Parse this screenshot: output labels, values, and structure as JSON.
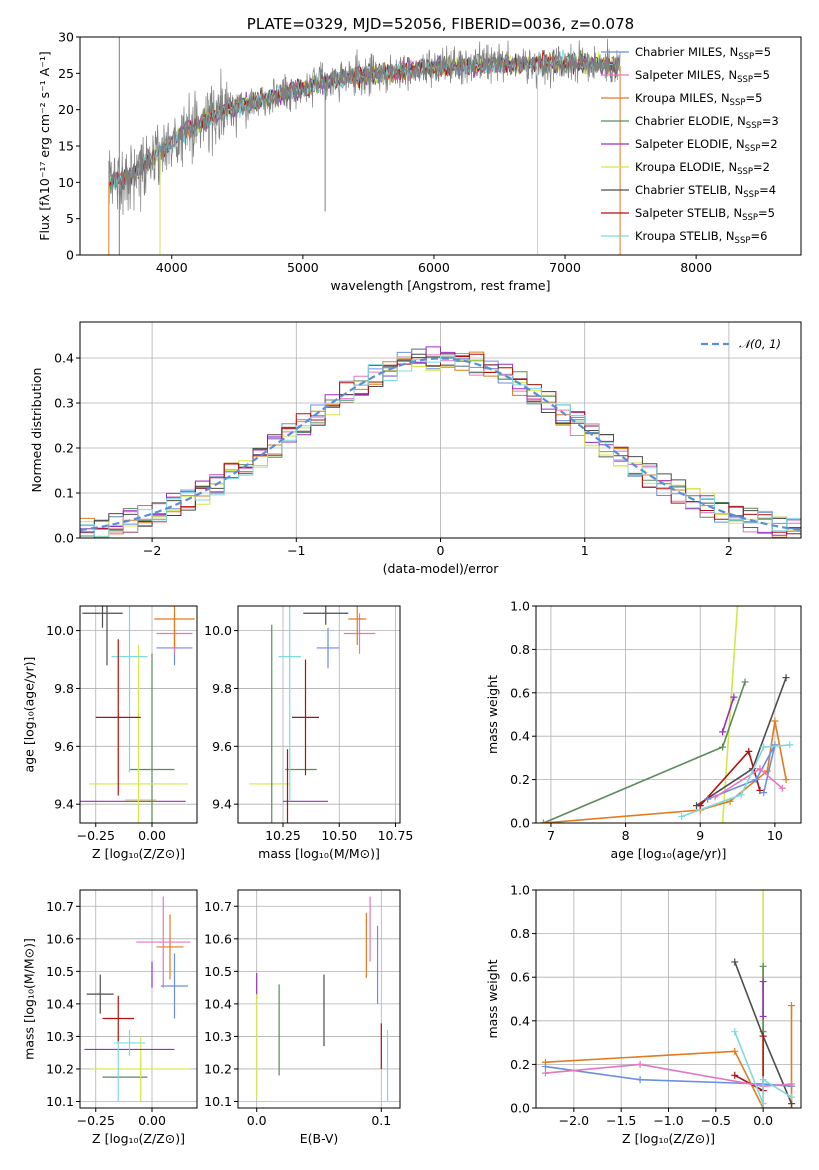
{
  "chart_data": [
    {
      "id": "spectrum",
      "type": "line",
      "title": "PLATE=0329, MJD=52056, FIBERID=0036, z=0.078",
      "xlabel": "wavelength [Angstrom, rest frame]",
      "ylabel": "Flux [fλ10⁻¹⁷ erg cm⁻² s⁻¹ A⁻¹]",
      "xlim": [
        3300,
        8800
      ],
      "ylim": [
        0,
        30
      ],
      "xticks": [
        4000,
        5000,
        6000,
        7000,
        8000
      ],
      "yticks": [
        0,
        5,
        10,
        15,
        20,
        25,
        30
      ],
      "grid": false,
      "legend_position": "top-right",
      "data_color": "#7f7f7f",
      "data_range": [
        3520,
        7420
      ],
      "data_continuum": [
        [
          3520,
          10
        ],
        [
          3700,
          11
        ],
        [
          3900,
          14
        ],
        [
          4100,
          17
        ],
        [
          4300,
          19
        ],
        [
          4500,
          20.5
        ],
        [
          4800,
          22
        ],
        [
          5100,
          23.5
        ],
        [
          5400,
          24.5
        ],
        [
          5800,
          25.5
        ],
        [
          6200,
          26
        ],
        [
          6600,
          26.3
        ],
        [
          7000,
          26.5
        ],
        [
          7420,
          26
        ]
      ],
      "series": [
        {
          "name": "Chabrier MILES, N",
          "sub": "SSP",
          "suffix": "=5",
          "color": "#6b8fe0"
        },
        {
          "name": "Salpeter MILES, N",
          "sub": "SSP",
          "suffix": "=5",
          "color": "#e377c2"
        },
        {
          "name": "Kroupa MILES, N",
          "sub": "SSP",
          "suffix": "=5",
          "color": "#e07b1f"
        },
        {
          "name": "Chabrier ELODIE, N",
          "sub": "SSP",
          "suffix": "=3",
          "color": "#5a8a5a"
        },
        {
          "name": "Salpeter ELODIE, N",
          "sub": "SSP",
          "suffix": "=2",
          "color": "#9b2fc0"
        },
        {
          "name": "Kroupa ELODIE, N",
          "sub": "SSP",
          "suffix": "=2",
          "color": "#d4e84a"
        },
        {
          "name": "Chabrier STELIB, N",
          "sub": "SSP",
          "suffix": "=4",
          "color": "#4d4d4d"
        },
        {
          "name": "Salpeter STELIB, N",
          "sub": "SSP",
          "suffix": "=5",
          "color": "#b01010"
        },
        {
          "name": "Kroupa STELIB, N",
          "sub": "SSP",
          "suffix": "=6",
          "color": "#7fd9e0"
        }
      ]
    },
    {
      "id": "histogram",
      "type": "histogram",
      "xlabel": "(data-model)/error",
      "ylabel": "Normed distribution",
      "xlim": [
        -2.5,
        2.5
      ],
      "ylim": [
        0,
        0.48
      ],
      "xticks": [
        -2,
        -1,
        0,
        1,
        2
      ],
      "yticks": [
        0.0,
        0.1,
        0.2,
        0.3,
        0.4
      ],
      "grid": true,
      "legend_position": "top-right",
      "legend_label": "𝒩(0, 1)",
      "gaussian_color": "#5b8ed6",
      "bin_width": 0.1
    },
    {
      "id": "age-vs-Z",
      "type": "errorbar",
      "xlabel": "Z [log₁₀(Z/Z⊙)]",
      "ylabel": "age  [log₁₀(age/yr)]",
      "xlim": [
        -0.32,
        0.2
      ],
      "ylim": [
        9.335,
        10.085
      ],
      "xticks": [
        -0.25,
        0.0
      ],
      "yticks": [
        9.4,
        9.6,
        9.8,
        10.0
      ],
      "grid": true,
      "points": [
        {
          "x": -0.05,
          "y": 9.415,
          "xerr": 0.07,
          "yerr": 0,
          "color": "#d4e84a"
        },
        {
          "x": -0.1,
          "y": 9.41,
          "xerr": 0.25,
          "yerr": 0,
          "color": "#9b2fc0"
        },
        {
          "x": 0.0,
          "y": 9.52,
          "xerr": 0.1,
          "yerr": 0.4,
          "color": "#5a8a5a"
        },
        {
          "x": -0.06,
          "y": 9.47,
          "xerr": 0.22,
          "yerr": 0.48,
          "color": "#d4e84a"
        },
        {
          "x": -0.1,
          "y": 9.91,
          "xerr": 0.08,
          "yerr": 0.4,
          "color": "#7fd9e0"
        },
        {
          "x": -0.15,
          "y": 9.7,
          "xerr": 0.1,
          "yerr": 0.27,
          "color": "#b01010"
        },
        {
          "x": 0.1,
          "y": 9.94,
          "xerr": 0.08,
          "yerr": 0.06,
          "color": "#6b8fe0"
        },
        {
          "x": 0.1,
          "y": 9.99,
          "xerr": 0.08,
          "yerr": 0.07,
          "color": "#e377c2"
        },
        {
          "x": 0.1,
          "y": 10.04,
          "xerr": 0.09,
          "yerr": 0.1,
          "color": "#e07b1f"
        },
        {
          "x": -0.22,
          "y": 10.06,
          "xerr": 0.09,
          "yerr": 0.05,
          "color": "#4d4d4d"
        },
        {
          "x": -0.2,
          "y": 9.99,
          "xerr": 0,
          "yerr": 0.11,
          "color": "#4d4d4d"
        }
      ]
    },
    {
      "id": "age-vs-mass",
      "type": "errorbar",
      "xlabel": "mass [log₁₀(M/M⊙)]",
      "ylabel": "",
      "xlim": [
        10.05,
        10.77
      ],
      "ylim": [
        9.335,
        10.085
      ],
      "xticks": [
        10.25,
        10.5,
        10.75
      ],
      "yticks": [
        9.4,
        9.6,
        9.8,
        10.0
      ],
      "grid": true,
      "points": [
        {
          "x": 10.19,
          "y": 9.47,
          "xerr": 0.09,
          "yerr": 0,
          "color": "#d4e84a"
        },
        {
          "x": 10.35,
          "y": 9.41,
          "xerr": 0.1,
          "yerr": 0,
          "color": "#9b2fc0"
        },
        {
          "x": 10.2,
          "y": 9.52,
          "xerr": 0,
          "yerr": 0.5,
          "color": "#5a8a5a"
        },
        {
          "x": 10.33,
          "y": 9.52,
          "xerr": 0.07,
          "yerr": 0,
          "color": "#5a8a5a"
        },
        {
          "x": 10.28,
          "y": 9.91,
          "xerr": 0.05,
          "yerr": 0.5,
          "color": "#7fd9e0"
        },
        {
          "x": 10.35,
          "y": 9.7,
          "xerr": 0.06,
          "yerr": 0.2,
          "color": "#b01010"
        },
        {
          "x": 10.45,
          "y": 9.94,
          "xerr": 0.05,
          "yerr": 0.07,
          "color": "#6b8fe0"
        },
        {
          "x": 10.59,
          "y": 9.99,
          "xerr": 0.07,
          "yerr": 0.07,
          "color": "#e377c2"
        },
        {
          "x": 10.58,
          "y": 10.04,
          "xerr": 0.04,
          "yerr": 0.09,
          "color": "#e07b1f"
        },
        {
          "x": 10.44,
          "y": 10.06,
          "xerr": 0.1,
          "yerr": 0.04,
          "color": "#4d4d4d"
        },
        {
          "x": 10.27,
          "y": 9.45,
          "xerr": 0,
          "yerr": 0.14,
          "color": "#b01010"
        }
      ]
    },
    {
      "id": "weight-vs-age",
      "type": "line",
      "xlabel": "age  [log₁₀(age/yr)]",
      "ylabel": "mass weight",
      "xlim": [
        6.8,
        10.35
      ],
      "ylim": [
        0,
        1
      ],
      "xticks": [
        7,
        8,
        9,
        10
      ],
      "yticks": [
        0.0,
        0.2,
        0.4,
        0.6,
        0.8,
        1.0
      ],
      "grid": true,
      "series": [
        {
          "color": "#d4e84a",
          "points": [
            [
              9.3,
              0.0
            ],
            [
              9.5,
              1.0
            ]
          ]
        },
        {
          "color": "#5a8a5a",
          "points": [
            [
              6.9,
              0.0
            ],
            [
              9.3,
              0.35
            ],
            [
              9.6,
              0.65
            ]
          ]
        },
        {
          "color": "#9b2fc0",
          "points": [
            [
              9.3,
              0.42
            ],
            [
              9.45,
              0.58
            ]
          ]
        },
        {
          "color": "#e07b1f",
          "points": [
            [
              6.9,
              0.0
            ],
            [
              9.0,
              0.06
            ],
            [
              9.4,
              0.1
            ],
            [
              9.9,
              0.24
            ],
            [
              10.0,
              0.47
            ],
            [
              10.15,
              0.2
            ]
          ]
        },
        {
          "color": "#4d4d4d",
          "points": [
            [
              8.95,
              0.08
            ],
            [
              9.7,
              0.25
            ],
            [
              10.15,
              0.67
            ]
          ]
        },
        {
          "color": "#b01010",
          "points": [
            [
              9.0,
              0.08
            ],
            [
              9.65,
              0.33
            ],
            [
              9.8,
              0.15
            ]
          ]
        },
        {
          "color": "#6b8fe0",
          "points": [
            [
              9.1,
              0.11
            ],
            [
              9.75,
              0.2
            ],
            [
              10.0,
              0.36
            ],
            [
              9.85,
              0.14
            ]
          ]
        },
        {
          "color": "#e377c2",
          "points": [
            [
              9.2,
              0.12
            ],
            [
              9.8,
              0.25
            ],
            [
              10.1,
              0.16
            ]
          ]
        },
        {
          "color": "#7fd9e0",
          "points": [
            [
              8.75,
              0.03
            ],
            [
              9.55,
              0.13
            ],
            [
              9.85,
              0.35
            ],
            [
              10.2,
              0.36
            ]
          ]
        }
      ]
    },
    {
      "id": "mass-vs-Z",
      "type": "errorbar",
      "xlabel": "Z [log₁₀(Z/Z⊙)]",
      "ylabel": "mass [log₁₀(M/M⊙)]",
      "xlim": [
        -0.32,
        0.2
      ],
      "ylim": [
        10.08,
        10.75
      ],
      "xticks": [
        -0.25,
        0.0
      ],
      "yticks": [
        10.1,
        10.2,
        10.3,
        10.4,
        10.5,
        10.6,
        10.7
      ],
      "grid": true,
      "points": [
        {
          "x": -0.05,
          "y": 10.2,
          "xerr": 0.22,
          "yerr": 0.1,
          "color": "#d4e84a"
        },
        {
          "x": -0.12,
          "y": 10.175,
          "xerr": 0.1,
          "yerr": 0,
          "color": "#5a8a5a"
        },
        {
          "x": -0.1,
          "y": 10.26,
          "xerr": 0.2,
          "yerr": 0,
          "color": "#9b2fc0"
        },
        {
          "x": -0.05,
          "y": 10.175,
          "xerr": 0,
          "yerr": 0.06,
          "color": "#d4e84a"
        },
        {
          "x": -0.15,
          "y": 10.2,
          "xerr": 0,
          "yerr": 0.1,
          "color": "#7fd9e0"
        },
        {
          "x": -0.1,
          "y": 10.28,
          "xerr": 0.07,
          "yerr": 0.04,
          "color": "#7fd9e0"
        },
        {
          "x": -0.15,
          "y": 10.355,
          "xerr": 0.07,
          "yerr": 0.07,
          "color": "#b01010"
        },
        {
          "x": -0.23,
          "y": 10.43,
          "xerr": 0.06,
          "yerr": 0.06,
          "color": "#4d4d4d"
        },
        {
          "x": 0.1,
          "y": 10.455,
          "xerr": 0.06,
          "yerr": 0.1,
          "color": "#6b8fe0"
        },
        {
          "x": 0.08,
          "y": 10.575,
          "xerr": 0.06,
          "yerr": 0.1,
          "color": "#e07b1f"
        },
        {
          "x": 0.05,
          "y": 10.59,
          "xerr": 0.12,
          "yerr": 0.14,
          "color": "#e377c2"
        },
        {
          "x": 0.0,
          "y": 10.49,
          "xerr": 0,
          "yerr": 0.04,
          "color": "#9b2fc0"
        }
      ]
    },
    {
      "id": "mass-vs-ebv",
      "type": "errorbar",
      "xlabel": "E(B-V)",
      "ylabel": "",
      "xlim": [
        -0.015,
        0.115
      ],
      "ylim": [
        10.08,
        10.75
      ],
      "xticks": [
        0.0,
        0.1
      ],
      "yticks": [
        10.1,
        10.2,
        10.3,
        10.4,
        10.5,
        10.6,
        10.7
      ],
      "grid": true,
      "points": [
        {
          "x": 0.0,
          "y": 10.455,
          "xerr": 0,
          "yerr": 0.04,
          "color": "#9b2fc0"
        },
        {
          "x": 0.0,
          "y": 10.27,
          "xerr": 0,
          "yerr": 0.16,
          "color": "#d4e84a"
        },
        {
          "x": 0.018,
          "y": 10.32,
          "xerr": 0,
          "yerr": 0.14,
          "color": "#5a8a5a"
        },
        {
          "x": 0.054,
          "y": 10.38,
          "xerr": 0,
          "yerr": 0.11,
          "color": "#4d4d4d"
        },
        {
          "x": 0.088,
          "y": 10.58,
          "xerr": 0,
          "yerr": 0.1,
          "color": "#e07b1f"
        },
        {
          "x": 0.091,
          "y": 10.63,
          "xerr": 0,
          "yerr": 0.1,
          "color": "#e377c2"
        },
        {
          "x": 0.097,
          "y": 10.52,
          "xerr": 0,
          "yerr": 0.12,
          "color": "#6b8fe0"
        },
        {
          "x": 0.1,
          "y": 10.27,
          "xerr": 0,
          "yerr": 0.07,
          "color": "#b01010"
        },
        {
          "x": 0.105,
          "y": 10.21,
          "xerr": 0,
          "yerr": 0.11,
          "color": "#7fd9e0"
        }
      ]
    },
    {
      "id": "weight-vs-Z",
      "type": "line",
      "xlabel": "Z [log₁₀(Z/Z⊙)]",
      "ylabel": "mass weight",
      "xlim": [
        -2.4,
        0.4
      ],
      "ylim": [
        0,
        1
      ],
      "xticks": [
        -2.0,
        -1.5,
        -1.0,
        -0.5,
        0.0
      ],
      "yticks": [
        0.0,
        0.2,
        0.4,
        0.6,
        0.8,
        1.0
      ],
      "grid": true,
      "series": [
        {
          "color": "#d4e84a",
          "points": [
            [
              0.0,
              0.0
            ],
            [
              0.0,
              1.0
            ]
          ]
        },
        {
          "color": "#5a8a5a",
          "points": [
            [
              0.0,
              0.65
            ],
            [
              0.0,
              0.35
            ]
          ]
        },
        {
          "color": "#9b2fc0",
          "points": [
            [
              0.0,
              0.58
            ],
            [
              0.0,
              0.42
            ]
          ]
        },
        {
          "color": "#e07b1f",
          "points": [
            [
              -2.3,
              0.21
            ],
            [
              -0.3,
              0.26
            ],
            [
              0.0,
              0.0
            ],
            [
              0.3,
              0.0
            ],
            [
              0.3,
              0.47
            ],
            [
              0.3,
              0.1
            ]
          ]
        },
        {
          "color": "#4d4d4d",
          "points": [
            [
              -0.3,
              0.67
            ],
            [
              0.0,
              0.33
            ],
            [
              0.3,
              0.02
            ]
          ]
        },
        {
          "color": "#b01010",
          "points": [
            [
              -0.3,
              0.15
            ],
            [
              0.0,
              0.08
            ],
            [
              0.0,
              0.33
            ]
          ]
        },
        {
          "color": "#6b8fe0",
          "points": [
            [
              -2.3,
              0.19
            ],
            [
              -1.3,
              0.13
            ],
            [
              0.0,
              0.11
            ],
            [
              0.3,
              0.1
            ]
          ]
        },
        {
          "color": "#e377c2",
          "points": [
            [
              -2.3,
              0.16
            ],
            [
              -1.3,
              0.2
            ],
            [
              0.0,
              0.1
            ],
            [
              0.3,
              0.11
            ]
          ]
        },
        {
          "color": "#7fd9e0",
          "points": [
            [
              -0.3,
              0.35
            ],
            [
              0.0,
              0.02
            ],
            [
              0.0,
              0.13
            ],
            [
              0.3,
              0.05
            ]
          ]
        }
      ]
    }
  ]
}
